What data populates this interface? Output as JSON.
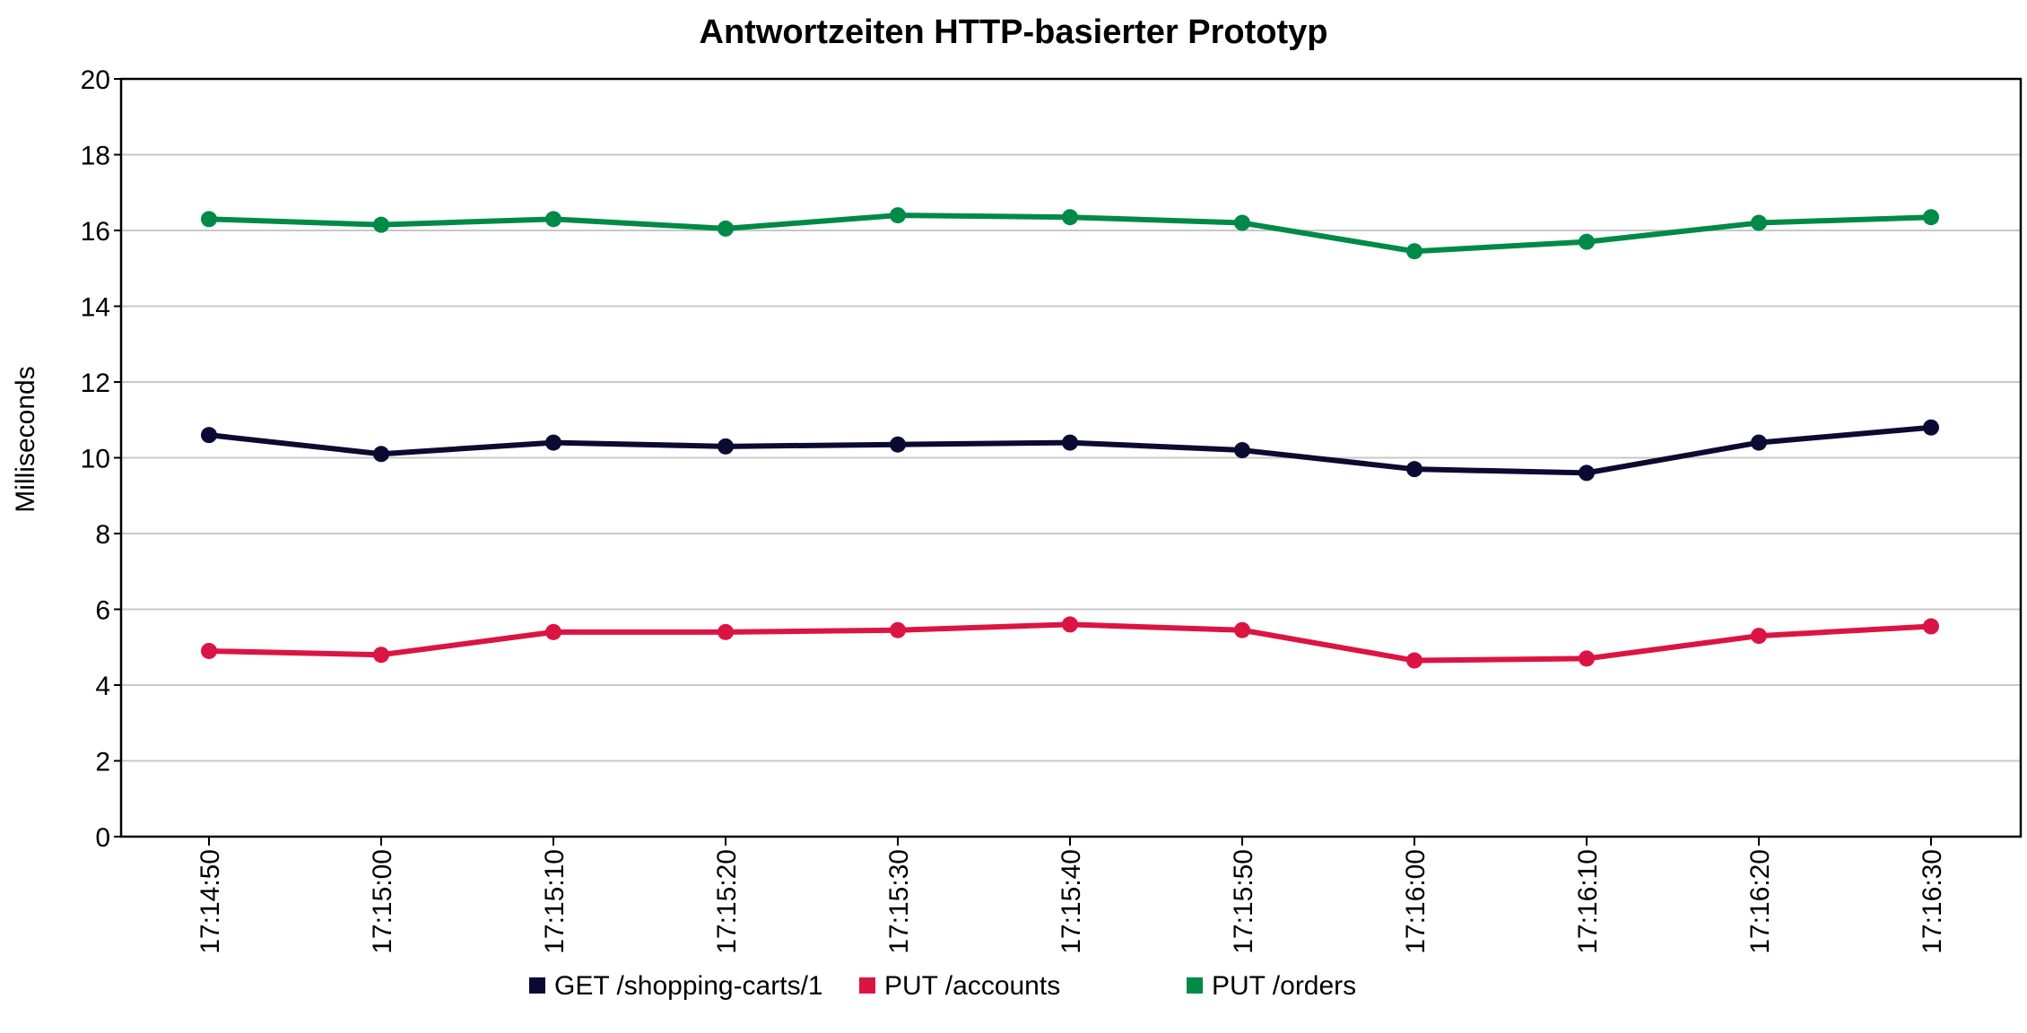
{
  "chart_data": {
    "type": "line",
    "title": "Antwortzeiten HTTP-basierter Prototyp",
    "xlabel": "",
    "ylabel": "Milliseconds",
    "ylim": [
      0,
      20
    ],
    "yticks": [
      "0",
      "2",
      "4",
      "6",
      "8",
      "10",
      "12",
      "14",
      "16",
      "18",
      "20"
    ],
    "grid": true,
    "legend_position": "bottom",
    "categories": [
      "17:14:50",
      "17:15:00",
      "17:15:10",
      "17:15:20",
      "17:15:30",
      "17:15:40",
      "17:15:50",
      "17:16:00",
      "17:16:10",
      "17:16:20",
      "17:16:30"
    ],
    "series": [
      {
        "name": "GET /shopping-carts/1",
        "color": "#0b0a33",
        "values": [
          10.6,
          10.1,
          10.4,
          10.3,
          10.35,
          10.4,
          10.2,
          9.7,
          9.6,
          10.4,
          10.8
        ]
      },
      {
        "name": "PUT /accounts",
        "color": "#dc1443",
        "values": [
          4.9,
          4.8,
          5.4,
          5.4,
          5.45,
          5.6,
          5.45,
          4.65,
          4.7,
          5.3,
          5.55
        ]
      },
      {
        "name": "PUT /orders",
        "color": "#008a47",
        "values": [
          16.3,
          16.15,
          16.3,
          16.05,
          16.4,
          16.35,
          16.2,
          15.45,
          15.7,
          16.2,
          16.35
        ]
      }
    ]
  }
}
